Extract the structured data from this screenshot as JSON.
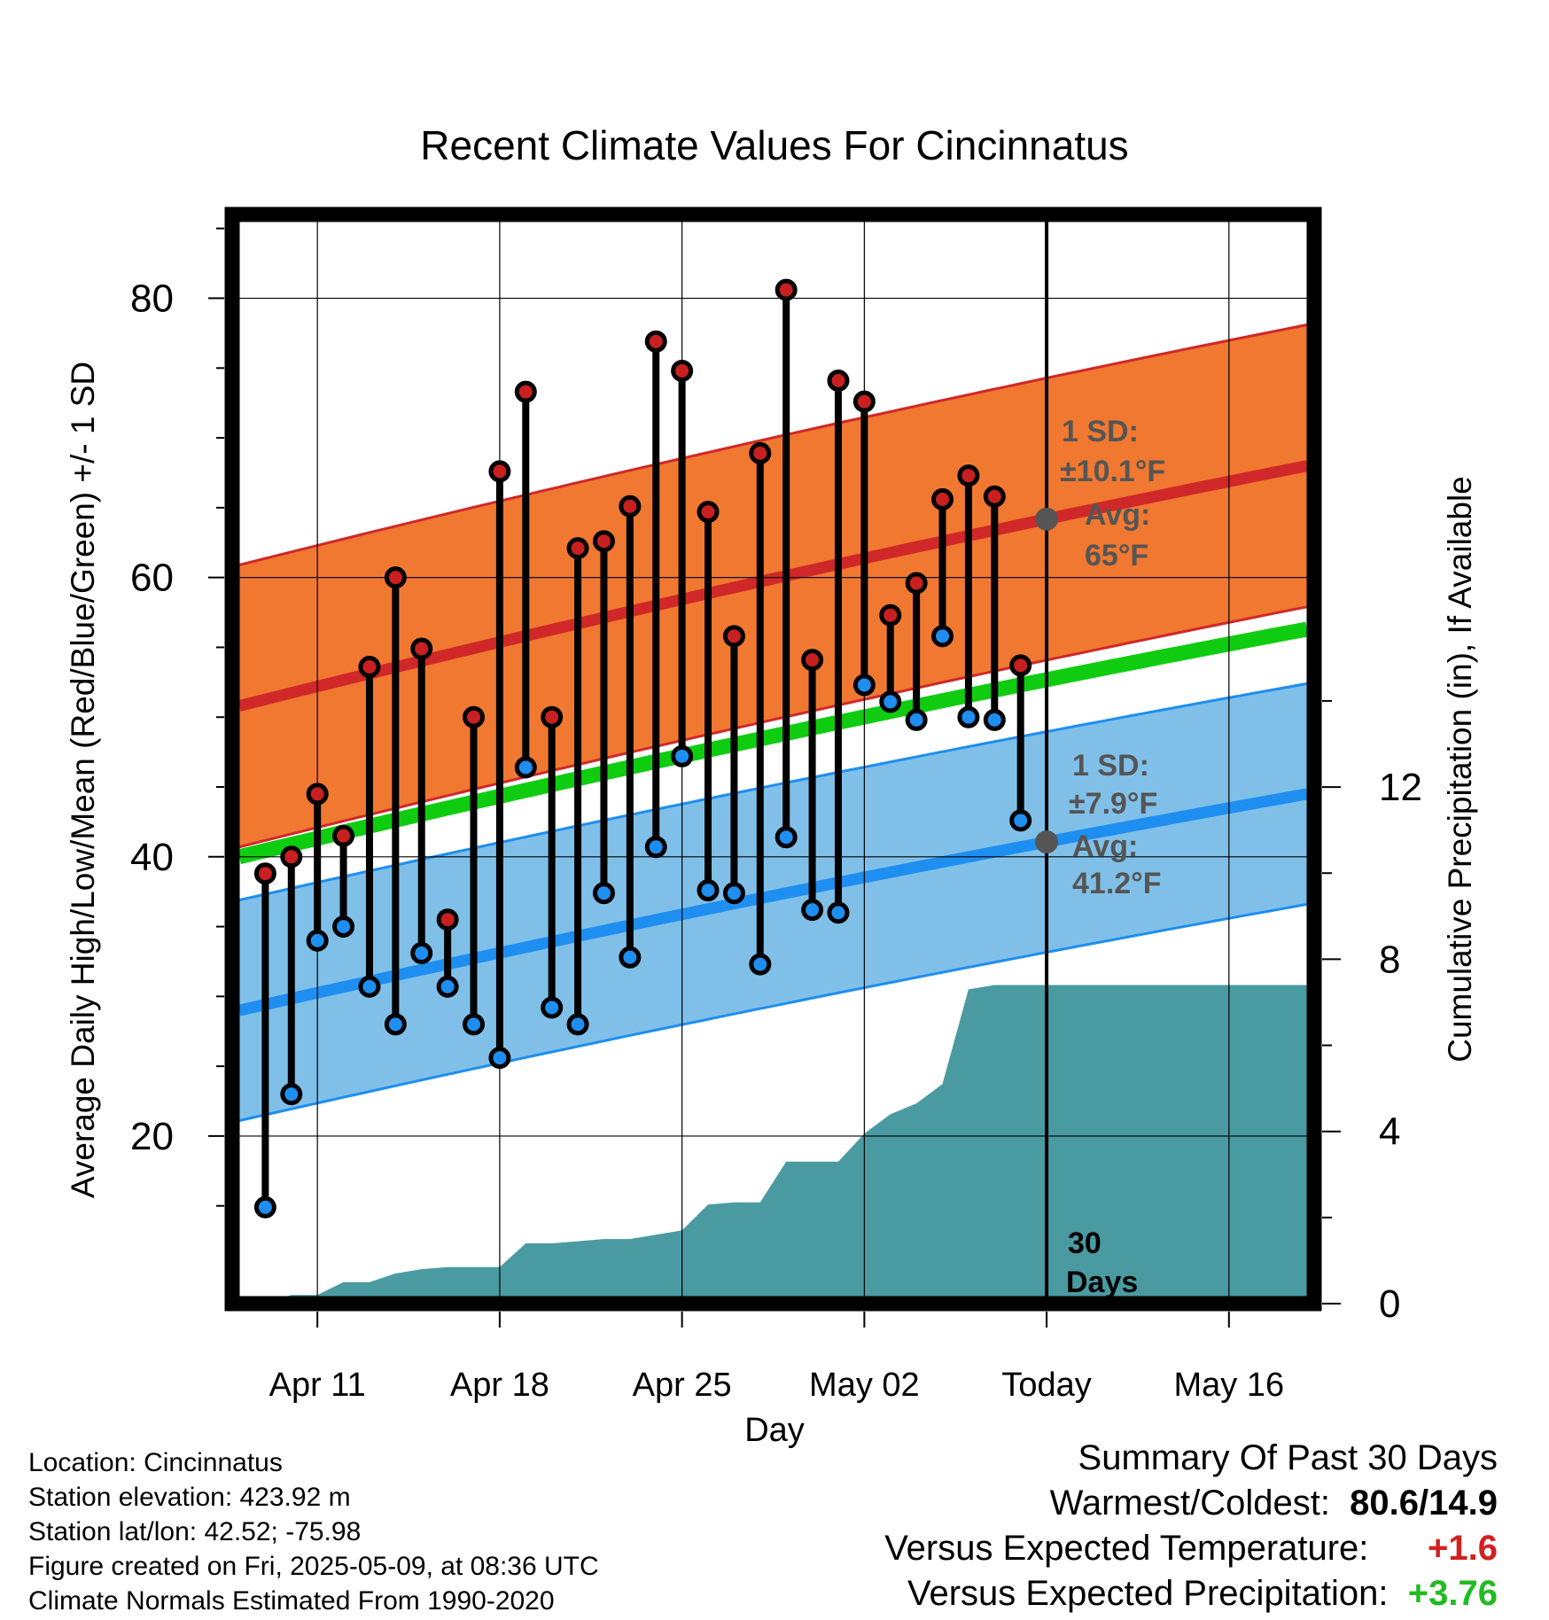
{
  "chart_data": {
    "type": "line",
    "title": "Recent Climate Values For Cincinnatus",
    "xlabel": "Day",
    "ylabel_left": "Average Daily High/Low/Mean (Red/Blue/Green) +/- 1 SD",
    "ylabel_right": "Cumulative Precipitation (in), If Available",
    "x_tick_labels": [
      "Apr 11",
      "Apr 18",
      "Apr 25",
      "May 02",
      "Today",
      "May 16"
    ],
    "y_left_ticks": [
      "20",
      "40",
      "60",
      "80"
    ],
    "y_right_ticks": [
      "0",
      "4",
      "8",
      "12"
    ],
    "ylim_left": [
      8,
      86
    ],
    "ylim_right": [
      0,
      25.3
    ],
    "x_dates": [
      "Apr 08",
      "May 19"
    ],
    "today": "May 09",
    "highs": [
      38.8,
      40.0,
      44.5,
      41.5,
      53.6,
      60.0,
      54.9,
      35.5,
      50.0,
      67.6,
      73.3,
      50.0,
      62.1,
      62.6,
      65.1,
      76.9,
      74.8,
      64.7,
      55.8,
      68.9,
      80.6,
      54.1,
      74.1,
      72.6,
      57.3,
      59.6,
      65.6,
      67.3,
      65.8,
      53.7
    ],
    "lows": [
      14.9,
      23.0,
      34.0,
      35.0,
      30.7,
      28.0,
      33.1,
      30.7,
      28.0,
      25.6,
      46.4,
      29.2,
      28.0,
      37.4,
      32.8,
      40.7,
      47.2,
      37.6,
      37.4,
      32.3,
      41.4,
      36.2,
      36.0,
      52.3,
      51.1,
      49.8,
      55.8,
      50.0,
      49.8,
      42.6
    ],
    "obs_dates": [
      "Apr 09",
      "May 08"
    ],
    "normal_high_range": [
      50.8,
      68.0
    ],
    "normal_low_range": [
      29.0,
      44.5
    ],
    "normal_mean_range": [
      40.0,
      56.3
    ],
    "high_sd": 10.1,
    "low_sd": 7.9,
    "precip_cumulative": [
      0.0,
      0.0,
      0.2,
      0.2,
      0.5,
      0.5,
      0.7,
      0.8,
      0.85,
      0.85,
      0.85,
      1.4,
      1.4,
      1.45,
      1.5,
      1.5,
      1.6,
      1.7,
      2.3,
      2.35,
      2.35,
      3.3,
      3.3,
      3.3,
      3.95,
      4.4,
      4.65,
      5.1,
      7.3,
      7.4,
      7.4
    ],
    "annotations": {
      "high_sd_label": "1 SD:",
      "high_sd_value": "±10.1°F",
      "high_avg_label": "Avg:",
      "high_avg_value": "65°F",
      "low_sd_label": "1 SD:",
      "low_sd_value": "±7.9°F",
      "low_avg_label": "Avg:",
      "low_avg_value": "41.2°F",
      "days_label_1": "30",
      "days_label_2": "Days"
    },
    "colors": {
      "high_band": "#f07830",
      "high_line": "#d02828",
      "low_band": "#80c0e8",
      "low_line": "#1e8ef0",
      "mean_line": "#10cc10",
      "precip": "#4a9aa2",
      "high_dot": "#c82020",
      "low_dot": "#1e8ef0"
    }
  },
  "footer": {
    "location": "Location: Cincinnatus",
    "elevation": "Station elevation: 423.92 m",
    "latlon": "Station lat/lon: 42.52; -75.98",
    "created": "Figure created on Fri, 2025-05-09, at 08:36 UTC",
    "normals": "Climate Normals Estimated From 1990-2020"
  },
  "summary": {
    "heading": "Summary Of Past 30 Days",
    "warm_label": "Warmest/Coldest:",
    "warm_value": "80.6/14.9",
    "temp_label": "Versus Expected Temperature:",
    "temp_value": "+1.6",
    "temp_color": "#d22020",
    "precip_label": "Versus Expected Precipitation:",
    "precip_value": "+3.76",
    "precip_color": "#22bb22"
  }
}
